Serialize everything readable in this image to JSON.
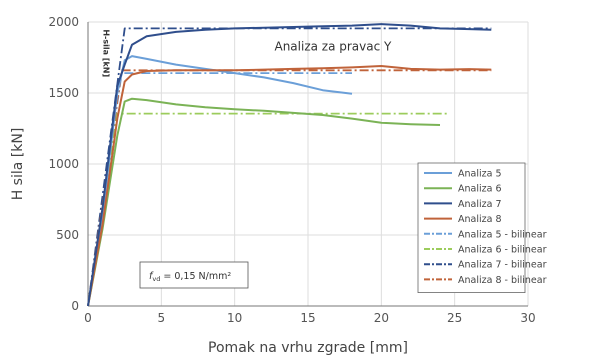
{
  "chart_data": {
    "type": "line",
    "xlabel": "Pomak na vrhu zgrade [mm]",
    "ylabel": "H sila [kN]",
    "xlim": [
      0,
      30
    ],
    "ylim": [
      0,
      2000
    ],
    "x_ticks": [
      "0",
      "5",
      "10",
      "15",
      "20",
      "25",
      "30"
    ],
    "y_ticks": [
      "0",
      "500",
      "1000",
      "1500",
      "2000"
    ],
    "grid": true,
    "legend_position": "bottom-right",
    "annotation": "Analiza za pravac Y",
    "vertical_label": "H-sila [kN]",
    "strength_box": {
      "symbol": "f",
      "subscript": "vd",
      "text": " = 0,15 N/mm²"
    },
    "series": [
      {
        "name": "Analiza 5",
        "color": "#6b9fd8",
        "style": "solid",
        "points": [
          [
            0,
            0
          ],
          [
            1,
            650
          ],
          [
            2,
            1500
          ],
          [
            2.5,
            1730
          ],
          [
            3,
            1760
          ],
          [
            4,
            1740
          ],
          [
            6,
            1700
          ],
          [
            8,
            1670
          ],
          [
            10,
            1640
          ],
          [
            12,
            1610
          ],
          [
            14,
            1570
          ],
          [
            16,
            1520
          ],
          [
            18,
            1495
          ]
        ]
      },
      {
        "name": "Analiza 6",
        "color": "#7bb356",
        "style": "solid",
        "points": [
          [
            0,
            0
          ],
          [
            1,
            550
          ],
          [
            2,
            1200
          ],
          [
            2.5,
            1440
          ],
          [
            3,
            1460
          ],
          [
            4,
            1450
          ],
          [
            6,
            1420
          ],
          [
            8,
            1400
          ],
          [
            10,
            1385
          ],
          [
            12,
            1375
          ],
          [
            14,
            1360
          ],
          [
            16,
            1345
          ],
          [
            18,
            1320
          ],
          [
            20,
            1290
          ],
          [
            22,
            1280
          ],
          [
            24,
            1275
          ]
        ]
      },
      {
        "name": "Analiza 7",
        "color": "#2f4e8c",
        "style": "solid",
        "points": [
          [
            0,
            0
          ],
          [
            1,
            700
          ],
          [
            2,
            1550
          ],
          [
            2.5,
            1700
          ],
          [
            3,
            1840
          ],
          [
            4,
            1900
          ],
          [
            6,
            1930
          ],
          [
            8,
            1945
          ],
          [
            10,
            1955
          ],
          [
            12,
            1960
          ],
          [
            14,
            1965
          ],
          [
            16,
            1970
          ],
          [
            18,
            1975
          ],
          [
            20,
            1985
          ],
          [
            22,
            1975
          ],
          [
            24,
            1955
          ],
          [
            26,
            1950
          ],
          [
            27.5,
            1945
          ]
        ]
      },
      {
        "name": "Analiza 8",
        "color": "#c0633a",
        "style": "solid",
        "points": [
          [
            0,
            0
          ],
          [
            1,
            580
          ],
          [
            2,
            1320
          ],
          [
            2.5,
            1580
          ],
          [
            3,
            1630
          ],
          [
            4,
            1655
          ],
          [
            6,
            1660
          ],
          [
            8,
            1660
          ],
          [
            10,
            1660
          ],
          [
            12,
            1665
          ],
          [
            14,
            1670
          ],
          [
            16,
            1675
          ],
          [
            18,
            1680
          ],
          [
            20,
            1690
          ],
          [
            22,
            1670
          ],
          [
            24,
            1665
          ],
          [
            26,
            1668
          ],
          [
            27.5,
            1665
          ]
        ]
      },
      {
        "name": "Analiza 5 - bilinear",
        "color": "#6b9fd8",
        "style": "dashdot",
        "points": [
          [
            0,
            0
          ],
          [
            2.3,
            1640
          ],
          [
            18,
            1640
          ]
        ]
      },
      {
        "name": "Analiza 6 - bilinear",
        "color": "#9ccc5c",
        "style": "dashdot",
        "points": [
          [
            0,
            0
          ],
          [
            2,
            1355
          ],
          [
            24.5,
            1355
          ]
        ]
      },
      {
        "name": "Analiza 7 - bilinear",
        "color": "#2f4e8c",
        "style": "dashdot",
        "points": [
          [
            0,
            0
          ],
          [
            2.5,
            1955
          ],
          [
            27.5,
            1955
          ]
        ]
      },
      {
        "name": "Analiza 8 - bilinear",
        "color": "#c0633a",
        "style": "dashdot",
        "points": [
          [
            0,
            0
          ],
          [
            2.3,
            1660
          ],
          [
            27.5,
            1660
          ]
        ]
      }
    ]
  }
}
